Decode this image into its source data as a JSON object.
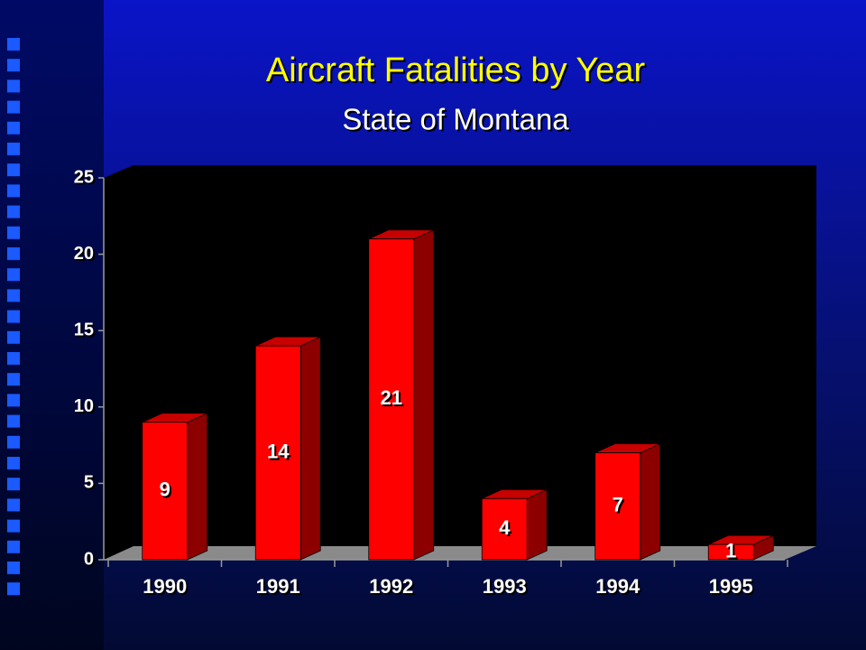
{
  "chart_data": {
    "type": "bar3d",
    "title": "Aircraft Fatalities by Year",
    "subtitle": "State of Montana",
    "categories": [
      "1990",
      "1991",
      "1992",
      "1993",
      "1994",
      "1995"
    ],
    "values": [
      9,
      14,
      21,
      4,
      7,
      1
    ],
    "color": "#ff0000",
    "ylim": [
      0,
      25
    ],
    "yticks": [
      0,
      5,
      10,
      15,
      20,
      25
    ],
    "grid": false
  }
}
